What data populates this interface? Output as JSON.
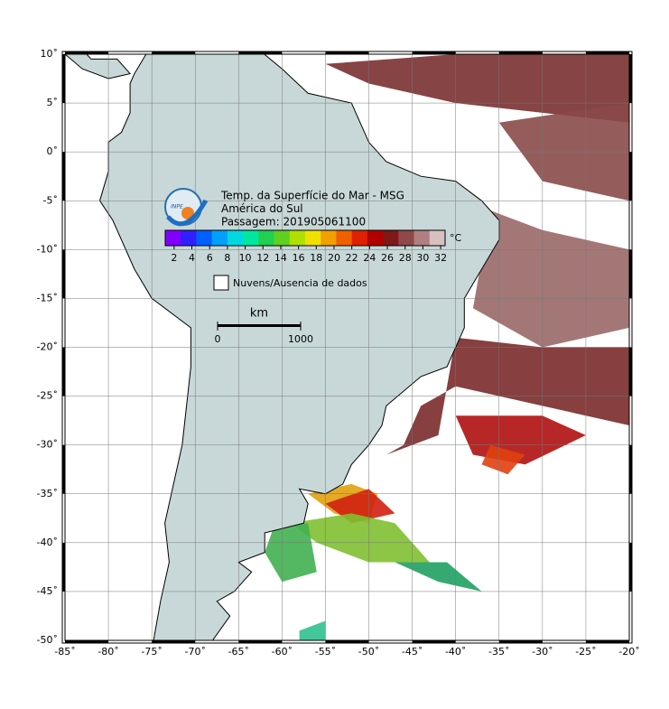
{
  "map": {
    "title_lines": [
      "Temp. da Superfície do Mar - MSG",
      "América do Sul",
      "Passagem: 201905061100"
    ],
    "logo_text": "INPE",
    "xlim": [
      -85,
      -20
    ],
    "ylim": [
      -50,
      10
    ],
    "grid": true,
    "lon_ticks": [
      {
        "value": -85,
        "label": "-85˚"
      },
      {
        "value": -80,
        "label": "-80˚"
      },
      {
        "value": -75,
        "label": "-75˚"
      },
      {
        "value": -70,
        "label": "-70˚"
      },
      {
        "value": -65,
        "label": "-65˚"
      },
      {
        "value": -60,
        "label": "-60˚"
      },
      {
        "value": -55,
        "label": "-55˚"
      },
      {
        "value": -50,
        "label": "-50˚"
      },
      {
        "value": -45,
        "label": "-45˚"
      },
      {
        "value": -40,
        "label": "-40˚"
      },
      {
        "value": -35,
        "label": "-35˚"
      },
      {
        "value": -30,
        "label": "-30˚"
      },
      {
        "value": -25,
        "label": "-25˚"
      },
      {
        "value": -20,
        "label": "-20˚"
      }
    ],
    "lat_ticks": [
      {
        "value": 10,
        "label": "10˚"
      },
      {
        "value": 5,
        "label": "5˚"
      },
      {
        "value": 0,
        "label": "0˚"
      },
      {
        "value": -5,
        "label": "-5˚"
      },
      {
        "value": -10,
        "label": "-10˚"
      },
      {
        "value": -15,
        "label": "-15˚"
      },
      {
        "value": -20,
        "label": "-20˚"
      },
      {
        "value": -25,
        "label": "-25˚"
      },
      {
        "value": -30,
        "label": "-30˚"
      },
      {
        "value": -35,
        "label": "-35˚"
      },
      {
        "value": -40,
        "label": "-40˚"
      },
      {
        "value": -45,
        "label": "-45˚"
      },
      {
        "value": -50,
        "label": "-50˚"
      }
    ],
    "colorbar": {
      "unit": "°C",
      "lim": [
        1,
        32.5
      ],
      "ticks": [
        2,
        4,
        6,
        8,
        10,
        12,
        14,
        16,
        18,
        20,
        22,
        24,
        26,
        28,
        30,
        32
      ],
      "colors": [
        "#8000ff",
        "#3020ff",
        "#0060ff",
        "#00a0ff",
        "#00d8e0",
        "#00e8a0",
        "#20d050",
        "#60d020",
        "#b0e000",
        "#f0e000",
        "#f0a000",
        "#f06000",
        "#e02000",
        "#b00000",
        "#801818",
        "#904848",
        "#b08080",
        "#d8c0c0"
      ]
    },
    "legend": "Nuvens/Ausencia de dados",
    "scale": {
      "unit": "km",
      "ticks": [
        0,
        1000
      ]
    }
  }
}
